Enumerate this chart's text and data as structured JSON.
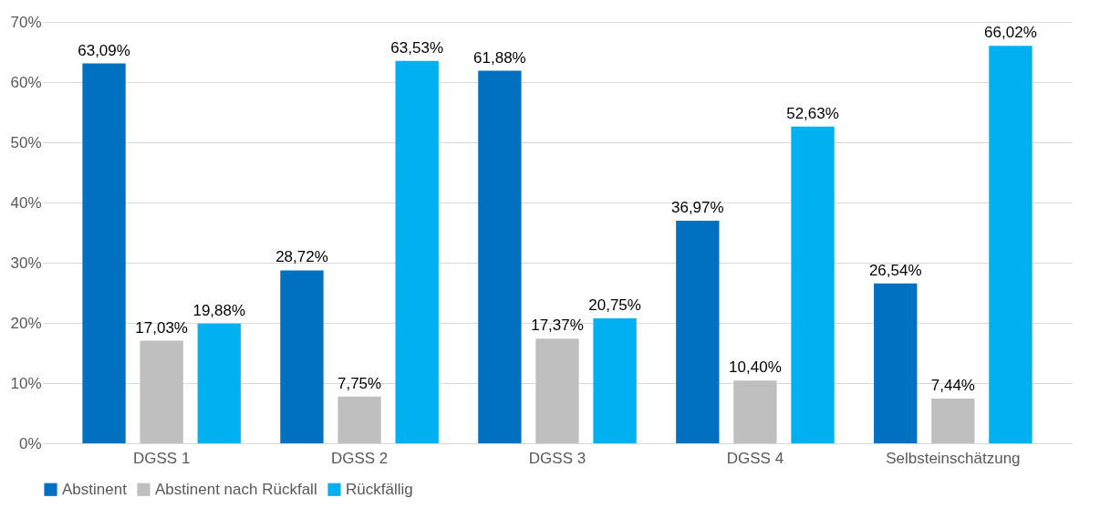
{
  "chart_data": {
    "type": "bar",
    "categories": [
      "DGSS 1",
      "DGSS 2",
      "DGSS 3",
      "DGSS 4",
      "Selbsteinschätzung"
    ],
    "series": [
      {
        "name": "Abstinent",
        "color": "#0070c0",
        "values": [
          63.09,
          28.72,
          61.88,
          36.97,
          26.54
        ],
        "value_labels": [
          "63,09%",
          "28,72%",
          "61,88%",
          "36,97%",
          "26,54%"
        ]
      },
      {
        "name": "Abstinent nach Rückfall",
        "color": "#bfbfbf",
        "values": [
          17.03,
          7.75,
          17.37,
          10.4,
          7.44
        ],
        "value_labels": [
          "17,03%",
          "7,75%",
          "17,37%",
          "10,40%",
          "7,44%"
        ]
      },
      {
        "name": "Rückfällig",
        "color": "#00b0f0",
        "values": [
          19.88,
          63.53,
          20.75,
          52.63,
          66.02
        ],
        "value_labels": [
          "19,88%",
          "63,53%",
          "20,75%",
          "52,63%",
          "66,02%"
        ]
      }
    ],
    "ylim": [
      0,
      70
    ],
    "yticks": [
      {
        "value": 0,
        "label": "0%"
      },
      {
        "value": 10,
        "label": "10%"
      },
      {
        "value": 20,
        "label": "20%"
      },
      {
        "value": 30,
        "label": "30%"
      },
      {
        "value": 40,
        "label": "40%"
      },
      {
        "value": 50,
        "label": "50%"
      },
      {
        "value": 60,
        "label": "60%"
      },
      {
        "value": 70,
        "label": "70%"
      }
    ],
    "grid": "y",
    "legend": "bottom"
  }
}
